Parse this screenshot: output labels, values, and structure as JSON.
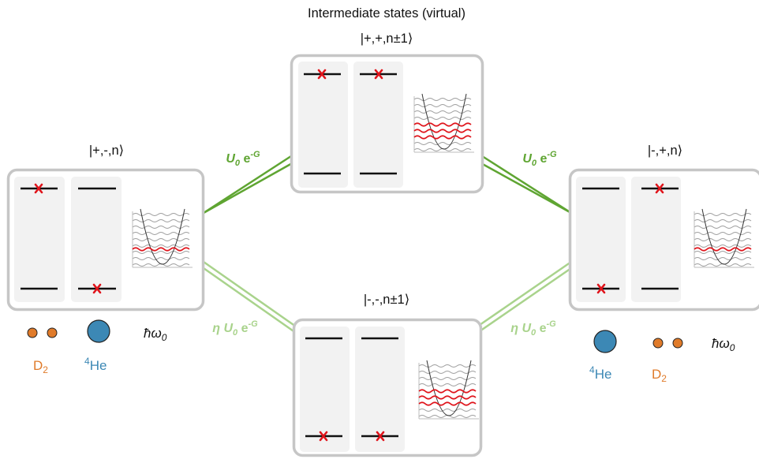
{
  "heading": "Intermediate states (virtual)",
  "states": {
    "top": {
      "label": "|+,+,n±1⟩",
      "left_excited": true,
      "right_excited": true,
      "highlighted_levels": "several"
    },
    "left": {
      "label": "|+,-,n⟩",
      "left_excited": true,
      "right_excited": false,
      "highlighted_levels": "one"
    },
    "right": {
      "label": "|-,+,n⟩",
      "left_excited": false,
      "right_excited": true,
      "highlighted_levels": "one"
    },
    "bottom": {
      "label": "|-,-,n±1⟩",
      "left_excited": false,
      "right_excited": false,
      "highlighted_levels": "several"
    }
  },
  "couplings": {
    "strong": {
      "prefix": "U",
      "sub": "0",
      "base": " e",
      "sup": "-G",
      "color": "#5fa532"
    },
    "weak": {
      "eta": "η ",
      "prefix": "U",
      "sub": "0",
      "base": " e",
      "sup": "-G",
      "color": "#a9d38c"
    }
  },
  "legend": {
    "left": {
      "d2_label": "D",
      "d2_sub": "2",
      "he_sup": "4",
      "he_label": "He",
      "phonon": "ħω",
      "phonon_sub": "0"
    },
    "right": {
      "d2_label": "D",
      "d2_sub": "2",
      "he_sup": "4",
      "he_label": "He",
      "phonon": "ħω",
      "phonon_sub": "0"
    }
  },
  "colors": {
    "d2": "#e07b2a",
    "he": "#3c88b5",
    "excitation_mark": "#e0141b",
    "highlight_level": "#e0141b",
    "box_border": "#c6c6c6"
  },
  "icons": [
    "d2-molecule-icon",
    "helium-atom-icon",
    "potential-well-icon",
    "excitation-cross-icon"
  ]
}
